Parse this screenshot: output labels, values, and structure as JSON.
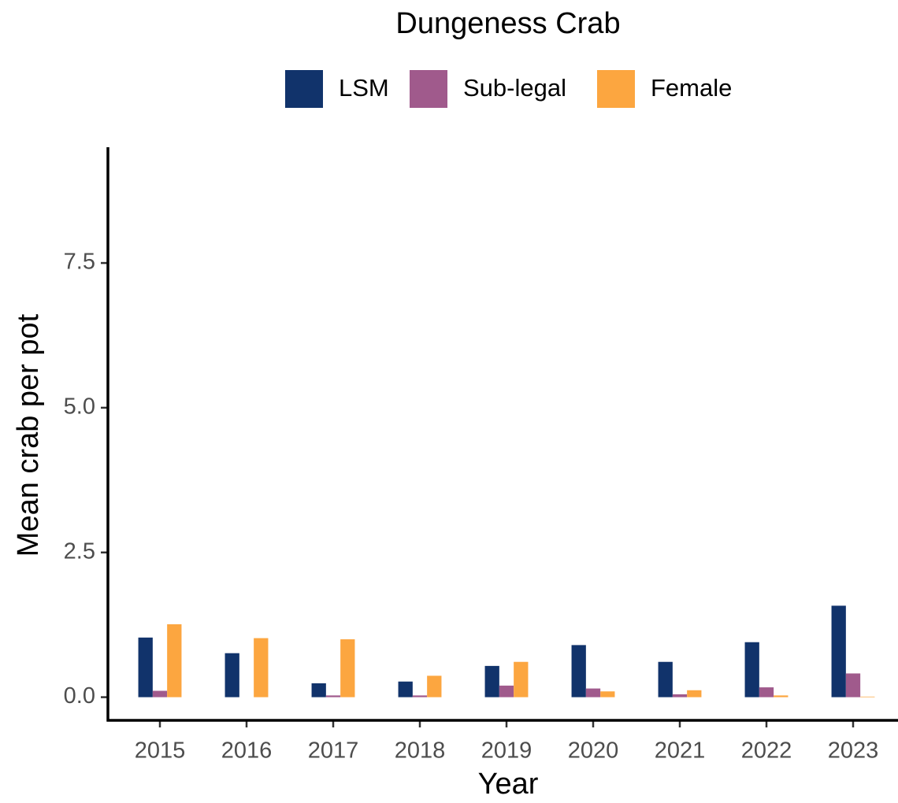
{
  "chart_data": {
    "type": "bar",
    "title": "Dungeness Crab",
    "x_label": "Year",
    "y_label": "Mean crab per pot",
    "categories": [
      "2015",
      "2016",
      "2017",
      "2018",
      "2019",
      "2020",
      "2021",
      "2022",
      "2023"
    ],
    "series": [
      {
        "name": "LSM",
        "color": "#11336b",
        "values": [
          1.03,
          0.76,
          0.24,
          0.27,
          0.54,
          0.9,
          0.61,
          0.95,
          1.58
        ]
      },
      {
        "name": "Sub-legal",
        "color": "#a05a8c",
        "values": [
          0.11,
          0,
          0.03,
          0.03,
          0.2,
          0.15,
          0.05,
          0.17,
          0.41
        ]
      },
      {
        "name": "Female",
        "color": "#fca640",
        "values": [
          1.26,
          1.02,
          1.0,
          0.37,
          0.61,
          0.1,
          0.12,
          0.03,
          0.01
        ]
      }
    ],
    "ylim": [
      -0.4,
      9.5
    ],
    "yticks": [
      {
        "value": 0,
        "label": "0.0"
      },
      2.5,
      {
        "value": 5,
        "label": "5.0"
      },
      7.5
    ],
    "legend": "top"
  }
}
